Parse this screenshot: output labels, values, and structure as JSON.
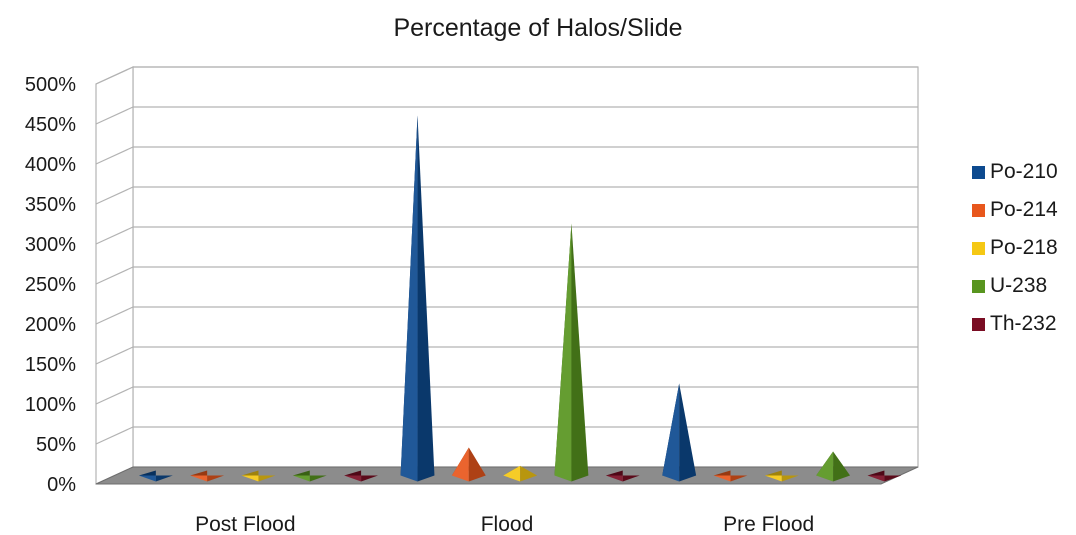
{
  "chart_data": {
    "type": "bar",
    "style": "3d-pyramid",
    "title": "Percentage of Halos/Slide",
    "xlabel": "",
    "ylabel": "",
    "categories": [
      "Post Flood",
      "Flood",
      "Pre Flood"
    ],
    "series": [
      {
        "name": "Po-210",
        "color": "#0d4a8f",
        "values": [
          0,
          450,
          115
        ]
      },
      {
        "name": "Po-214",
        "color": "#e8571c",
        "values": [
          0,
          35,
          0
        ]
      },
      {
        "name": "Po-218",
        "color": "#f5c814",
        "values": [
          0,
          12,
          0
        ]
      },
      {
        "name": "U-238",
        "color": "#58951f",
        "values": [
          0,
          315,
          30
        ]
      },
      {
        "name": "Th-232",
        "color": "#7a0d23",
        "values": [
          0,
          0,
          0
        ]
      }
    ],
    "ylim": [
      0,
      500
    ],
    "yticks": [
      "0%",
      "50%",
      "100%",
      "150%",
      "200%",
      "250%",
      "300%",
      "350%",
      "400%",
      "450%",
      "500%"
    ],
    "grid": true,
    "legend": "right"
  }
}
